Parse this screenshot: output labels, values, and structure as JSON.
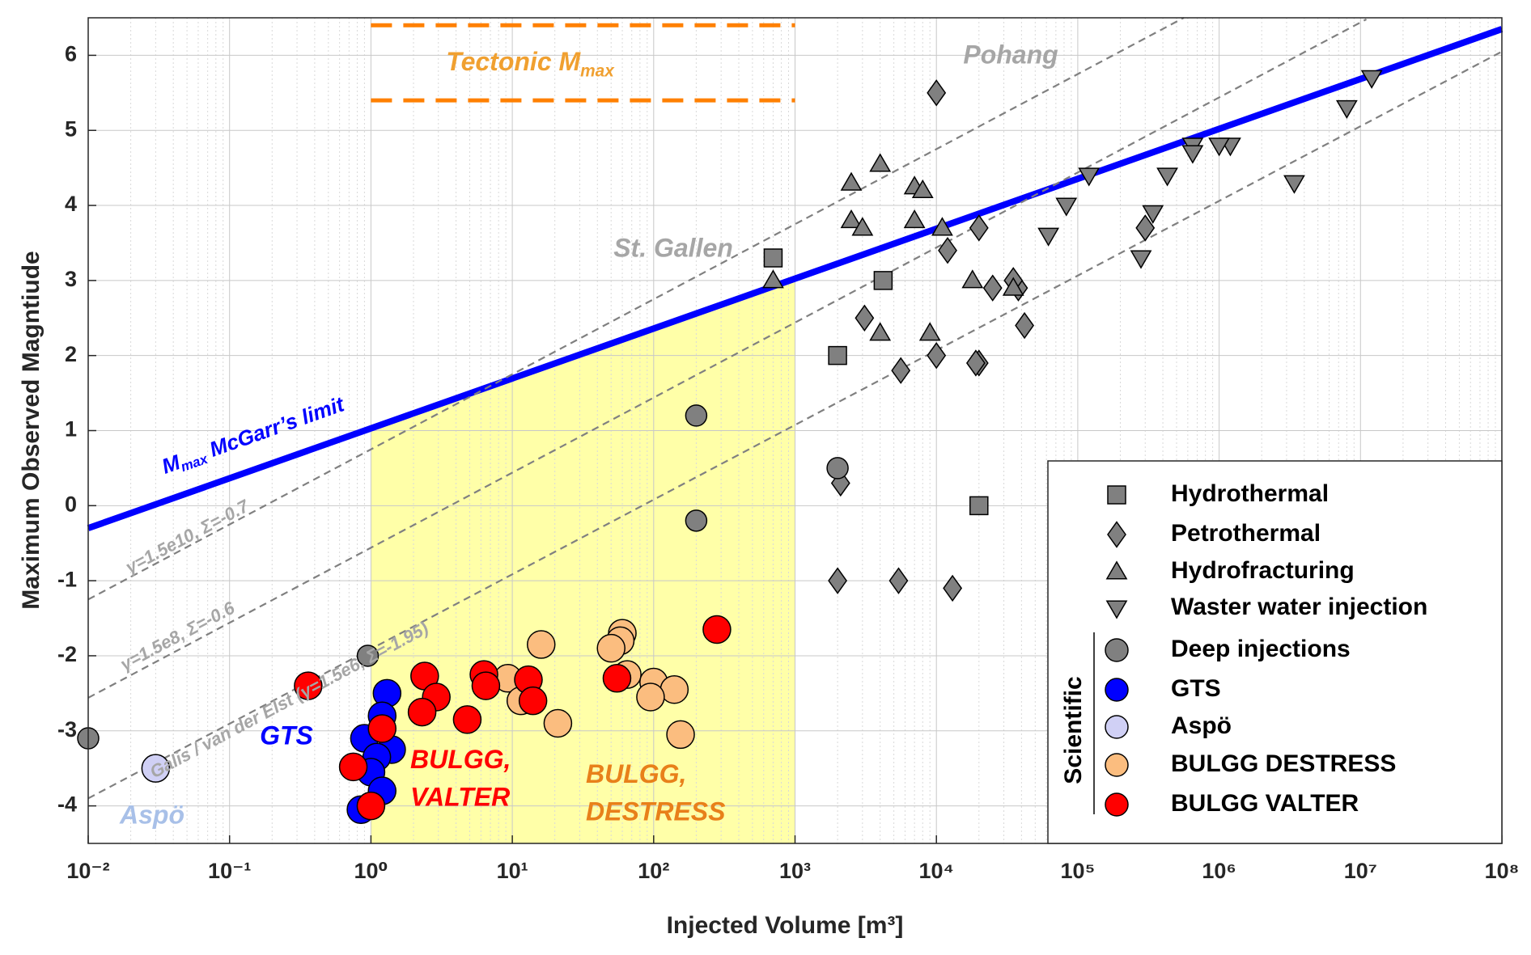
{
  "chart_data": {
    "type": "scatter",
    "xlabel": "Injected Volume [m³]",
    "ylabel": "Maximum Observed Magntiude",
    "xscale": "log",
    "xlim": [
      0.01,
      100000000
    ],
    "ylim": [
      -4.5,
      6.5
    ],
    "xticks": [
      {
        "value": 0.01,
        "label": "10⁻²"
      },
      {
        "value": 0.1,
        "label": "10⁻¹"
      },
      {
        "value": 1,
        "label": "10⁰"
      },
      {
        "value": 10,
        "label": "10¹"
      },
      {
        "value": 100,
        "label": "10²"
      },
      {
        "value": 1000,
        "label": "10³"
      },
      {
        "value": 10000,
        "label": "10⁴"
      },
      {
        "value": 100000,
        "label": "10⁵"
      },
      {
        "value": 1000000,
        "label": "10⁶"
      },
      {
        "value": 10000000,
        "label": "10⁷"
      },
      {
        "value": 100000000,
        "label": "10⁸"
      }
    ],
    "yticks": [
      -4,
      -3,
      -2,
      -1,
      0,
      1,
      2,
      3,
      4,
      5,
      6
    ],
    "grid": true,
    "minor_grid": true,
    "legend_position": "lower right",
    "legend_group": "Scientific",
    "shaded_region": {
      "x": [
        1,
        1000
      ],
      "color": "#ffffa8"
    },
    "lines": [
      {
        "x": [
          0.01,
          100000000
        ],
        "y": [
          -0.3,
          6.35
        ],
        "color": "#0000ff",
        "dashed": false
      },
      {
        "x": [
          0.01,
          562000
        ],
        "y": [
          -1.25,
          6.5
        ],
        "color": "#808080",
        "dashed": true
      },
      {
        "x": [
          0.01,
          11000000
        ],
        "y": [
          -2.56,
          6.48
        ],
        "color": "#808080",
        "dashed": true
      },
      {
        "x": [
          0.01,
          100000000
        ],
        "y": [
          -3.9,
          6.05
        ],
        "color": "#808080",
        "dashed": true
      },
      {
        "x": [
          1,
          1000
        ],
        "y": [
          6.4,
          6.4
        ],
        "color": "#ff8000",
        "dashed": true
      },
      {
        "x": [
          1,
          1000
        ],
        "y": [
          5.4,
          5.4
        ],
        "color": "#ff8000",
        "dashed": true
      }
    ],
    "annotations": [
      {
        "parts": [
          "Tectonic M",
          "max"
        ],
        "color": "#f0a030"
      },
      {
        "text": "Pohang",
        "color": "#a6a6a6"
      },
      {
        "text": "St. Gallen",
        "color": "#a6a6a6"
      },
      {
        "parts": [
          "M",
          "max",
          " McGarr’s limit"
        ],
        "color": "#0000ff"
      },
      {
        "text": "γ=1.5e10, Σ=-0.7",
        "color": "#a6a6a6"
      },
      {
        "text": "γ=1.5e8, Σ=-0.6",
        "color": "#a6a6a6"
      },
      {
        "text": "Galis / van der Elst (γ=1.5e6, Σ=-1.95)",
        "color": "#a6a6a6"
      },
      {
        "text": "GTS",
        "color": "#0000ff"
      },
      {
        "text": "Aspö",
        "color": "#a8c0e8"
      },
      {
        "lines": [
          "BULGG,",
          "VALTER"
        ],
        "color": "#ff0000"
      },
      {
        "lines": [
          "BULGG,",
          "DESTRESS"
        ],
        "color": "#e8801a"
      }
    ],
    "series": [
      {
        "name": "Hydrothermal",
        "marker": "square",
        "color": "#808080",
        "x": [
          700,
          4200,
          2000,
          20000
        ],
        "values": [
          3.3,
          3.0,
          2.0,
          0
        ]
      },
      {
        "name": "Petrothermal",
        "marker": "diamond",
        "color": "#808080",
        "x": [
          10000,
          20000,
          12000,
          38000,
          3100,
          42000,
          10000,
          20000,
          5600,
          19000,
          2100,
          2000,
          5400,
          13000,
          25000,
          300000,
          35000
        ],
        "values": [
          5.5,
          3.7,
          3.4,
          2.9,
          2.5,
          2.4,
          2.0,
          1.9,
          1.8,
          1.9,
          0.3,
          -1,
          -1,
          -1.1,
          2.9,
          3.7,
          3.0
        ]
      },
      {
        "name": "Hydrofracturing",
        "marker": "triangle-up",
        "color": "#808080",
        "x": [
          700,
          2500,
          4000,
          2500,
          3000,
          7000,
          7000,
          8000,
          4000,
          9000,
          11000,
          18000,
          35000
        ],
        "values": [
          3.0,
          4.3,
          4.55,
          3.8,
          3.7,
          3.8,
          4.25,
          4.2,
          2.3,
          2.3,
          3.7,
          3.0,
          2.9
        ]
      },
      {
        "name": "Waster water injection",
        "marker": "triangle-down",
        "color": "#808080",
        "x": [
          12000000,
          8000000,
          3400000,
          1200000,
          1000000,
          650000,
          650000,
          430000,
          340000,
          280000,
          120000,
          83000,
          62000
        ],
        "values": [
          5.7,
          5.3,
          4.3,
          4.8,
          4.8,
          4.8,
          4.7,
          4.4,
          3.9,
          3.3,
          4.4,
          4.0,
          3.6
        ]
      },
      {
        "name": "Deep injections",
        "marker": "circle",
        "color": "#808080",
        "x": [
          200,
          2000,
          200,
          0.95,
          0.01
        ],
        "values": [
          1.2,
          0.5,
          -0.2,
          -2.0,
          -3.1
        ]
      },
      {
        "name": "GTS",
        "marker": "circle",
        "color": "#0000ff",
        "x": [
          1.3,
          1.2,
          0.9,
          1.4,
          1.1,
          1.0,
          1.2,
          0.85
        ],
        "values": [
          -2.5,
          -2.8,
          -3.1,
          -3.25,
          -3.35,
          -3.55,
          -3.8,
          -4.05
        ]
      },
      {
        "name": "Aspö",
        "marker": "circle",
        "color": "#d0d0f5",
        "x": [
          0.03
        ],
        "values": [
          -3.5
        ]
      },
      {
        "name": "BULGG DESTRESS",
        "marker": "circle",
        "color": "#fbbd7f",
        "x": [
          16,
          60,
          58,
          50,
          65,
          9.3,
          11.5,
          100,
          140,
          95,
          21,
          155
        ],
        "values": [
          -1.85,
          -1.7,
          -1.8,
          -1.9,
          -2.25,
          -2.3,
          -2.6,
          -2.35,
          -2.45,
          -2.55,
          -2.9,
          -3.05
        ]
      },
      {
        "name": "BULGG VALTER",
        "marker": "circle",
        "color": "#ff0000",
        "x": [
          280,
          0.36,
          2.4,
          6.3,
          6.5,
          13,
          14,
          2.9,
          2.3,
          4.8,
          55,
          1.2,
          0.75,
          1.0
        ],
        "values": [
          -1.65,
          -2.4,
          -2.27,
          -2.25,
          -2.4,
          -2.32,
          -2.6,
          -2.55,
          -2.75,
          -2.85,
          -2.3,
          -2.97,
          -3.48,
          -4.0
        ]
      }
    ]
  }
}
